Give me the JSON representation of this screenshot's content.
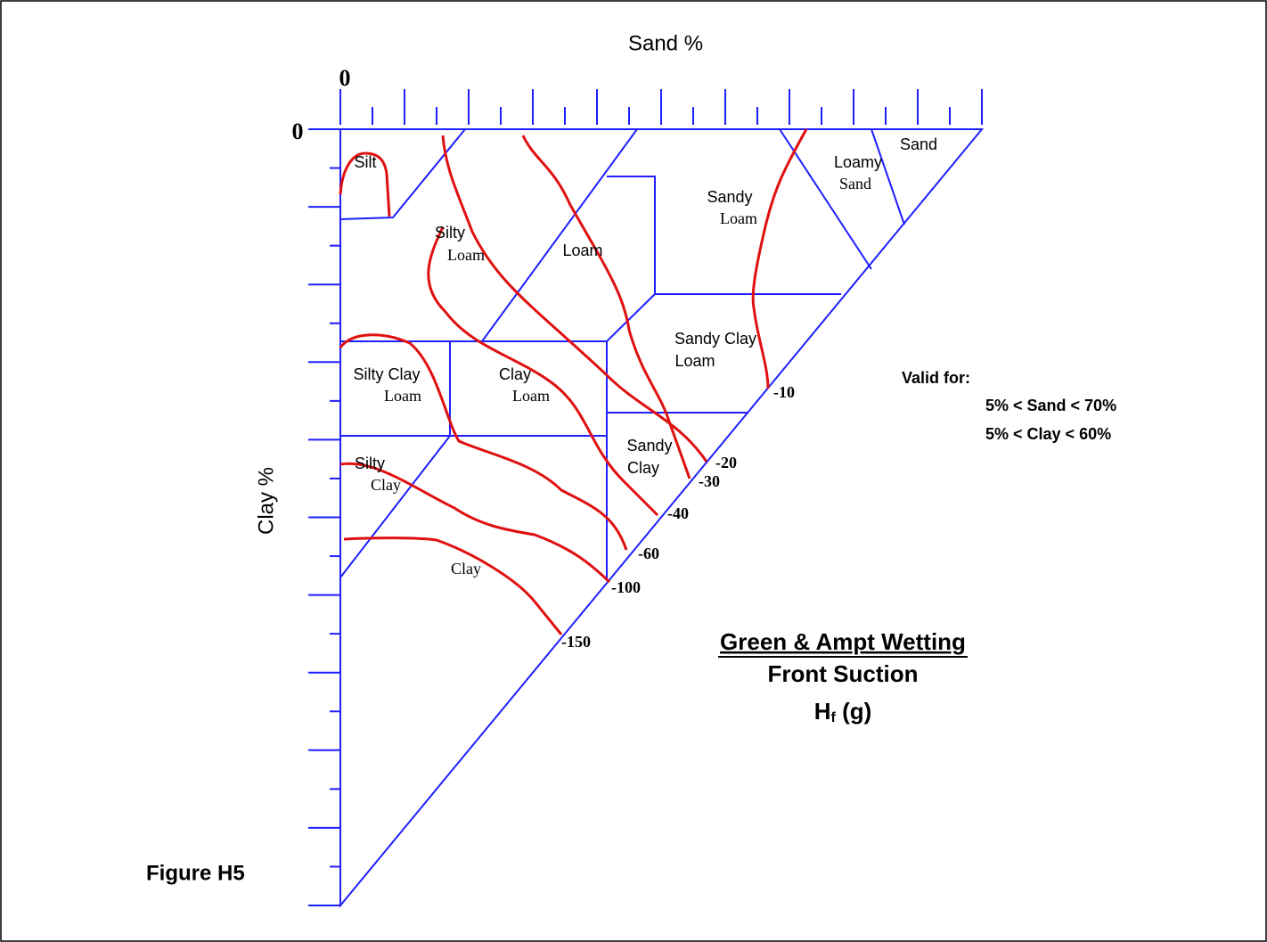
{
  "axes": {
    "top_label": "Sand %",
    "left_label": "Clay %",
    "top_origin": "0",
    "left_origin": "0"
  },
  "regions": [
    {
      "lines": [
        "Silt"
      ]
    },
    {
      "lines": [
        "Loamy",
        "Sand"
      ]
    },
    {
      "lines": [
        "Sand"
      ]
    },
    {
      "lines": [
        "Sandy",
        "Loam"
      ]
    },
    {
      "lines": [
        "Silty",
        "Loam"
      ]
    },
    {
      "lines": [
        "Loam"
      ]
    },
    {
      "lines": [
        "Sandy Clay",
        "Loam"
      ]
    },
    {
      "lines": [
        "Silty Clay",
        "Loam"
      ]
    },
    {
      "lines": [
        "Clay",
        "Loam"
      ]
    },
    {
      "lines": [
        "Sandy",
        "Clay"
      ]
    },
    {
      "lines": [
        "Silty",
        "Clay"
      ]
    },
    {
      "lines": [
        "Clay"
      ]
    }
  ],
  "contours": [
    "-10",
    "-20",
    "-30",
    "-40",
    "-60",
    "-100",
    "-150"
  ],
  "note": {
    "title": "Valid for:",
    "lines": [
      "5% < Sand < 70%",
      "5% < Clay < 60%"
    ]
  },
  "caption": {
    "lines": [
      "Green & Ampt Wetting",
      "Front Suction"
    ],
    "symbol": "H",
    "subscript": "f",
    "suffix": " (g)"
  },
  "figure_label": "Figure H5"
}
